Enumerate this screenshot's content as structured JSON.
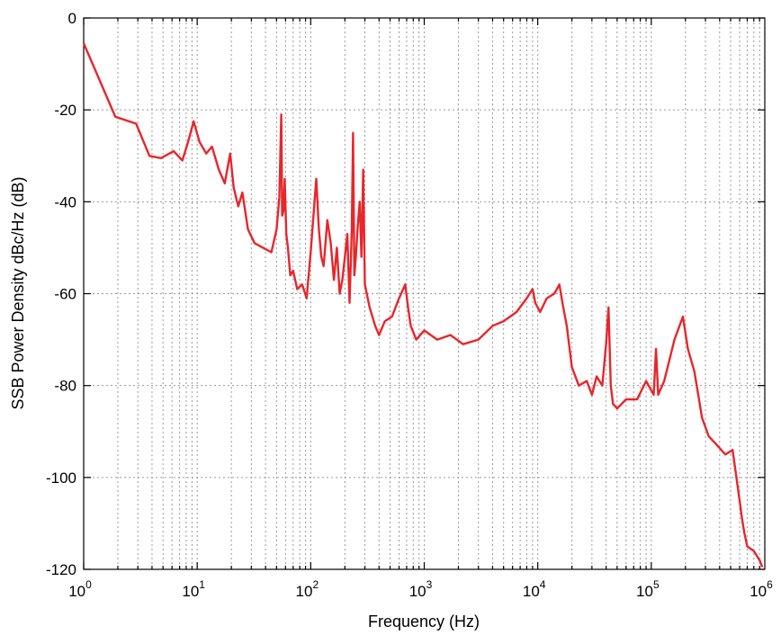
{
  "chart_data": {
    "type": "line",
    "xscale": "log",
    "xlabel": "Frequency (Hz)",
    "ylabel": "SSB Power Density dBc/Hz (dB)",
    "xlim": [
      1,
      1000000
    ],
    "ylim": [
      -120,
      0
    ],
    "grid": true,
    "x_ticks": [
      {
        "base": "10",
        "exp": "0"
      },
      {
        "base": "10",
        "exp": "1"
      },
      {
        "base": "10",
        "exp": "2"
      },
      {
        "base": "10",
        "exp": "3"
      },
      {
        "base": "10",
        "exp": "4"
      },
      {
        "base": "10",
        "exp": "5"
      },
      {
        "base": "10",
        "exp": "6"
      }
    ],
    "y_ticks": [
      "0",
      "-20",
      "-40",
      "-60",
      "-80",
      "-100",
      "-120"
    ],
    "line_color": "#e8262b",
    "series": [
      {
        "x": [
          1,
          1.9,
          2.9,
          3.8,
          4.8,
          6.2,
          7.4,
          8.3,
          9.3,
          10.5,
          12,
          13.5,
          15.5,
          17.5,
          19.5,
          21,
          23,
          25,
          28,
          32,
          38,
          45,
          50,
          53,
          55,
          56,
          57.5,
          59,
          61,
          63,
          66,
          70,
          76,
          84,
          92,
          100,
          105,
          112,
          118,
          124,
          130,
          140,
          150,
          160,
          170,
          180,
          190,
          200,
          210,
          220,
          230,
          236,
          242,
          250,
          260,
          270,
          280,
          290,
          300,
          330,
          370,
          400,
          450,
          520,
          600,
          680,
          720,
          760,
          850,
          1000,
          1300,
          1700,
          2200,
          3000,
          4000,
          5000,
          6500,
          8000,
          9000,
          9500,
          10500,
          12000,
          14000,
          15500,
          16500,
          18000,
          20000,
          23000,
          27000,
          30000,
          33000,
          37000,
          40000,
          42000,
          44000,
          46000,
          50000,
          60000,
          75000,
          90000,
          105000,
          110000,
          115000,
          130000,
          160000,
          190000,
          210000,
          240000,
          280000,
          320000,
          380000,
          450000,
          520000,
          600000,
          630000,
          660000,
          700000,
          800000,
          900000,
          950000
        ],
        "y": [
          -5.5,
          -21.5,
          -23,
          -30,
          -30.5,
          -29,
          -31,
          -27,
          -22.5,
          -27,
          -29.5,
          -28,
          -33,
          -36,
          -29.5,
          -37,
          -41,
          -38,
          -46,
          -49,
          -50,
          -51,
          -46,
          -39,
          -21,
          -43,
          -42,
          -35,
          -47,
          -50,
          -56,
          -55,
          -59,
          -58,
          -61,
          -51,
          -44,
          -35,
          -46,
          -52,
          -54,
          -44,
          -49,
          -57,
          -50,
          -60,
          -57,
          -52,
          -47,
          -62,
          -46,
          -25,
          -56,
          -52,
          -45,
          -40,
          -52,
          -33,
          -58,
          -63,
          -67,
          -69,
          -66,
          -65,
          -61,
          -58,
          -63,
          -67,
          -70,
          -68,
          -70,
          -69,
          -71,
          -70,
          -67,
          -66,
          -64,
          -61,
          -59,
          -62,
          -64,
          -61,
          -60,
          -58,
          -62,
          -67,
          -76,
          -80,
          -79,
          -82,
          -78,
          -80,
          -71,
          -63,
          -80,
          -84,
          -85,
          -83,
          -83,
          -79,
          -82,
          -72,
          -82,
          -79,
          -70,
          -65,
          -72,
          -77,
          -87,
          -91,
          -93,
          -95,
          -94,
          -105,
          -109,
          -112,
          -115,
          -116,
          -118,
          -119.5
        ]
      }
    ]
  }
}
